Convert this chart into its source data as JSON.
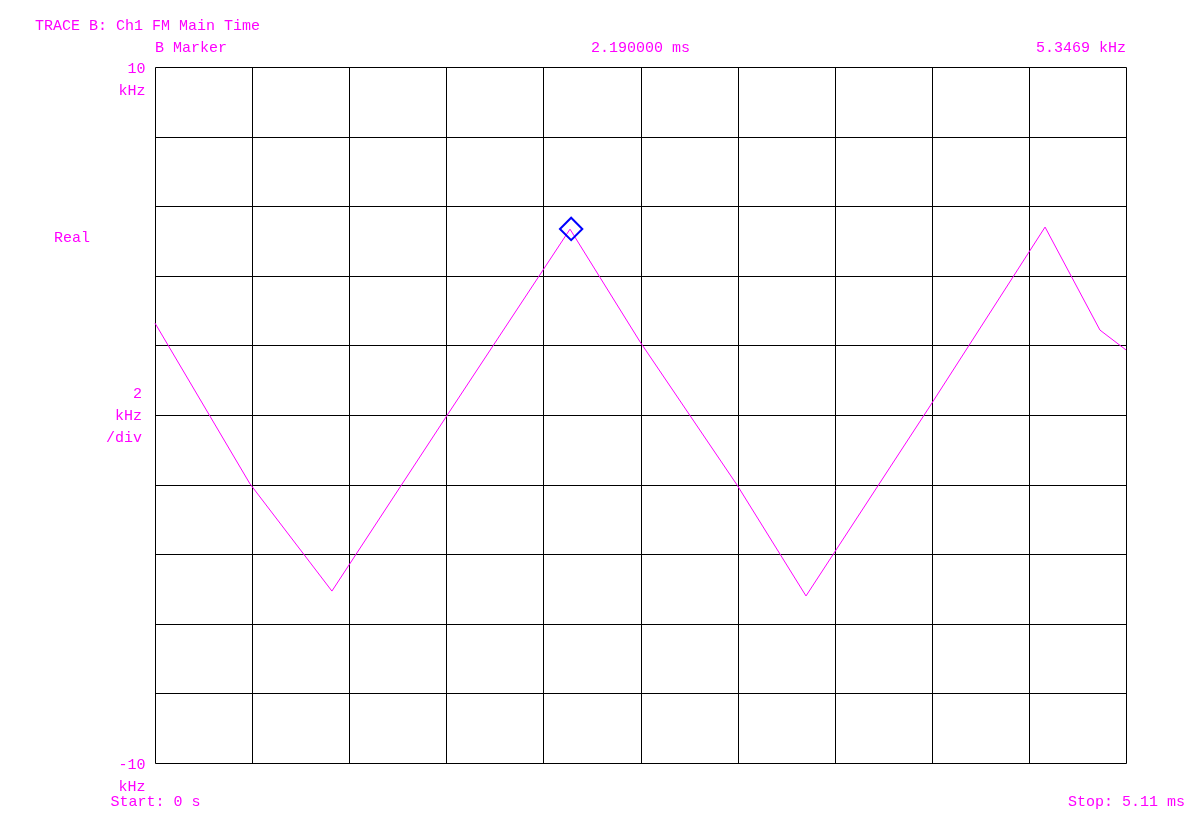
{
  "chart_data": {
    "type": "line",
    "title": "TRACE B:  Ch1 FM Main Time",
    "ylabel": "2 kHz /div",
    "annotations": [
      "B Marker",
      "2.190000 ms",
      "5.3469 kHz",
      "Real"
    ],
    "series": [
      {
        "type": "line",
        "color": "#ff00ff",
        "marker": "none",
        "x": [
          0,
          0.5,
          0.931,
          1.542,
          2.184,
          2.553,
          3.063,
          3.426,
          4.079,
          4.684,
          4.973,
          5.11
        ],
        "values": [
          2.64,
          -1.98,
          -5.06,
          0.03,
          5.34,
          2.1,
          -2.01,
          -5.2,
          0.26,
          5.4,
          2.44,
          1.87
        ]
      },
      {
        "type": "scatter",
        "color": "#0000ff",
        "marker": "diamond",
        "x": [
          2.19
        ],
        "values": [
          5.3469
        ]
      }
    ],
    "xlim": [
      0,
      5.11
    ],
    "xticks": [
      {
        "value": 0,
        "label": "Start: 0 s"
      },
      {
        "value": 0.511,
        "label": null
      },
      {
        "value": 1.022,
        "label": null
      },
      {
        "value": 1.533,
        "label": null
      },
      {
        "value": 2.044,
        "label": null
      },
      {
        "value": 2.555,
        "label": null
      },
      {
        "value": 3.066,
        "label": null
      },
      {
        "value": 3.577,
        "label": null
      },
      {
        "value": 4.088,
        "label": null
      },
      {
        "value": 4.599,
        "label": null
      },
      {
        "value": 5.11,
        "label": "Stop: 5.11 ms"
      }
    ],
    "ylim": [
      -10,
      10
    ],
    "yticks": [
      {
        "value": -10,
        "label": "-10 kHz"
      },
      {
        "value": -8,
        "label": null
      },
      {
        "value": -6,
        "label": null
      },
      {
        "value": -4,
        "label": null
      },
      {
        "value": -2,
        "label": null
      },
      {
        "value": 0,
        "label": null
      },
      {
        "value": 2,
        "label": null
      },
      {
        "value": 4,
        "label": null
      },
      {
        "value": 6,
        "label": null
      },
      {
        "value": 8,
        "label": null
      },
      {
        "value": 10,
        "label": "10 kHz"
      }
    ],
    "grid": true
  }
}
